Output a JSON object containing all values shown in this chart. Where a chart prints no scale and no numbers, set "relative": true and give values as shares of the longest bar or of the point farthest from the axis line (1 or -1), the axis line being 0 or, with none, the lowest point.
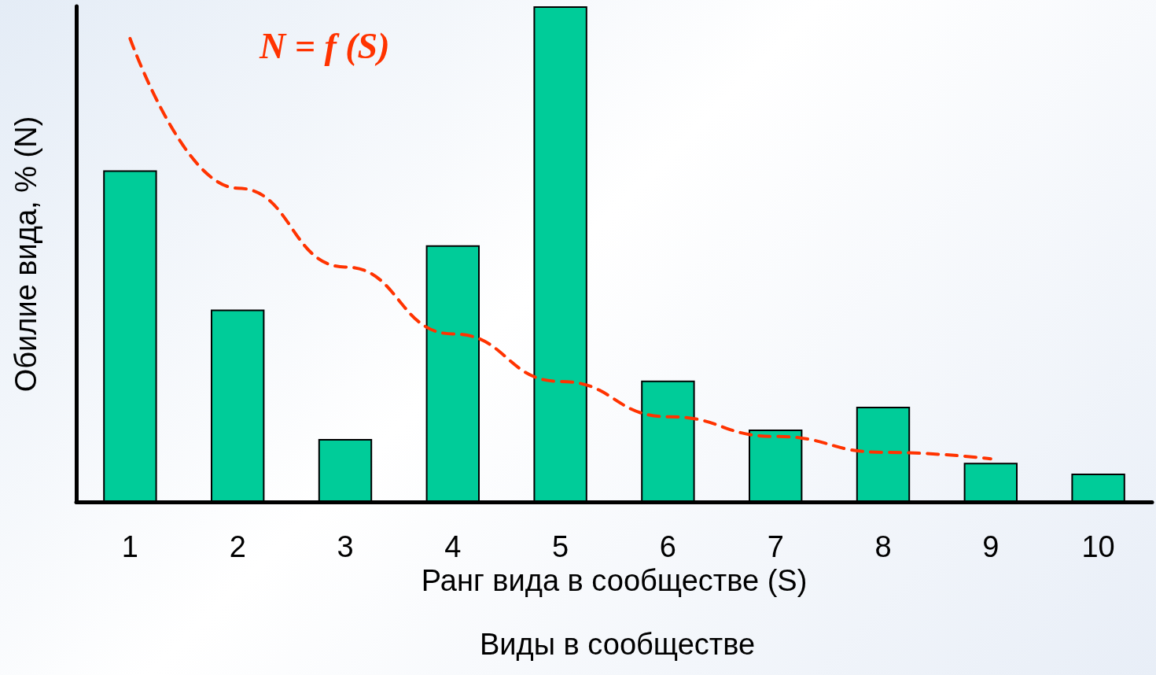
{
  "chart_data": {
    "type": "bar",
    "relative": true,
    "xlabel": "Ранг вида в сообществе (S)",
    "ylabel": "Обилие вида, % (N)",
    "categories": [
      "1",
      "2",
      "3",
      "4",
      "5",
      "6",
      "7",
      "8",
      "9",
      "10"
    ],
    "series": [
      {
        "color": "#00cc99",
        "values": [
          0.669,
          0.388,
          0.127,
          0.518,
          1,
          0.245,
          0.146,
          0.192,
          0.079,
          0.057
        ]
      },
      {
        "type": "line",
        "color": "#ff3300",
        "line_style": "dashed",
        "values": [
          0.935,
          0.633,
          0.474,
          0.339,
          0.243,
          0.172,
          0.132,
          0.1,
          0.087,
          null
        ]
      }
    ],
    "annotations": [
      "N = f (S)",
      "Виды в сообществе"
    ],
    "grid": false,
    "marker": "none"
  }
}
